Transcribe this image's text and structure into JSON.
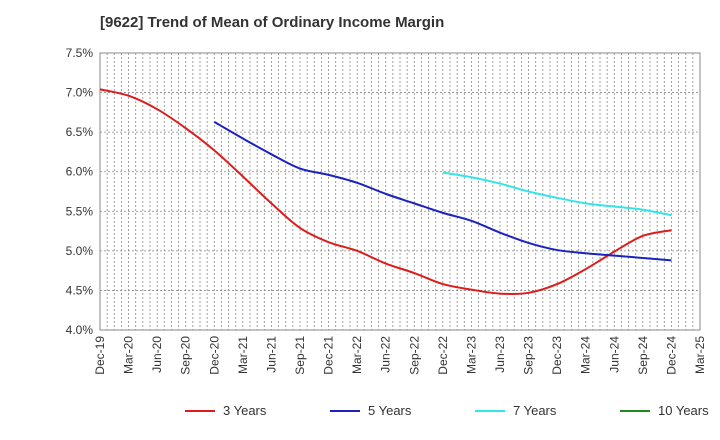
{
  "title": "[9622]  Trend of Mean of Ordinary Income Margin",
  "chart_data": {
    "type": "line",
    "title": "[9622]  Trend of Mean of Ordinary Income Margin",
    "xlabel": "",
    "ylabel": "",
    "categories": [
      "Dec-19",
      "Mar-20",
      "Jun-20",
      "Sep-20",
      "Dec-20",
      "Mar-21",
      "Jun-21",
      "Sep-21",
      "Dec-21",
      "Mar-22",
      "Jun-22",
      "Sep-22",
      "Dec-22",
      "Mar-23",
      "Jun-23",
      "Sep-23",
      "Dec-23",
      "Mar-24",
      "Jun-24",
      "Sep-24",
      "Dec-24",
      "Mar-25"
    ],
    "ylim": [
      4.0,
      7.5
    ],
    "yticks": [
      4.0,
      4.5,
      5.0,
      5.5,
      6.0,
      6.5,
      7.0,
      7.5
    ],
    "ytick_labels": [
      "4.0%",
      "4.5%",
      "5.0%",
      "5.5%",
      "6.0%",
      "6.5%",
      "7.0%",
      "7.5%"
    ],
    "grid": true,
    "legend_position": "bottom",
    "series": [
      {
        "name": "3 Years",
        "color": "#dd1c1c",
        "values": [
          7.04,
          6.96,
          6.79,
          6.55,
          6.27,
          5.94,
          5.6,
          5.29,
          5.11,
          5.0,
          4.84,
          4.72,
          4.58,
          4.51,
          4.46,
          4.47,
          4.58,
          4.77,
          4.99,
          5.19,
          5.26,
          null
        ]
      },
      {
        "name": "5 Years",
        "color": "#1a23c0",
        "values": [
          null,
          null,
          null,
          null,
          6.63,
          6.42,
          6.22,
          6.04,
          5.96,
          5.86,
          5.72,
          5.6,
          5.48,
          5.38,
          5.23,
          5.1,
          5.01,
          4.97,
          4.94,
          4.91,
          4.88,
          null
        ]
      },
      {
        "name": "7 Years",
        "color": "#33e5e8",
        "values": [
          null,
          null,
          null,
          null,
          null,
          null,
          null,
          null,
          null,
          null,
          null,
          null,
          5.99,
          5.93,
          5.85,
          5.75,
          5.67,
          5.6,
          5.56,
          5.52,
          5.45,
          null
        ]
      },
      {
        "name": "10 Years",
        "color": "#1f8a1f",
        "values": [
          null,
          null,
          null,
          null,
          null,
          null,
          null,
          null,
          null,
          null,
          null,
          null,
          null,
          null,
          null,
          null,
          null,
          null,
          null,
          null,
          null,
          null
        ]
      }
    ]
  }
}
